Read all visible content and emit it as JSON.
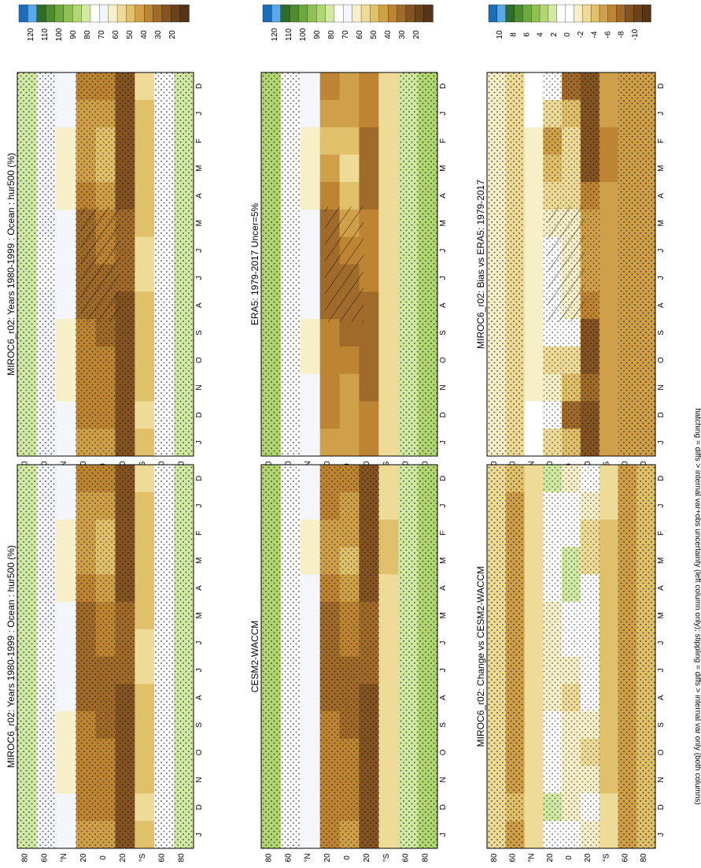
{
  "figure": {
    "footnote": "hatching = diffs > internal var+obs uncertainty (left column only); stippling = diffs > internal var only (both columns)"
  },
  "panels": [
    {
      "title": "MIROC6_r02: Years 1980-1999 : Ocean : hur500 (%)",
      "kind": "abs",
      "hatch": true,
      "stipple": "both"
    },
    {
      "title": "MIROC6_r02: Years 1980-1999 : Ocean : hur500 (%)",
      "kind": "abs",
      "hatch": false,
      "stipple": "both"
    },
    {
      "title": "ERA5: 1979-2017 Uncer=5%",
      "kind": "abs",
      "hatch": true,
      "stipple": "edge"
    },
    {
      "title": "CESM2-WACCM",
      "kind": "abs",
      "hatch": false,
      "stipple": "both"
    },
    {
      "title": "MIROC6_r02: Bias vs ERA5: 1979-2017",
      "kind": "diff",
      "hatch": true,
      "stipple": "both"
    },
    {
      "title": "MIROC6_r02: Change vs CESM2-WACCM",
      "kind": "diff",
      "hatch": false,
      "stipple": "both"
    }
  ],
  "axes": {
    "month_labels": [
      "D",
      "J",
      "F",
      "M",
      "A",
      "M",
      "J",
      "J",
      "A",
      "S",
      "O",
      "N",
      "D",
      "J"
    ],
    "lat_labels": [
      "80",
      "60",
      "°N",
      "20",
      "0",
      "20",
      "°S",
      "60",
      "80"
    ]
  },
  "colorbars": {
    "abs": {
      "labels": [
        "120",
        "110",
        "100",
        "90",
        "80",
        "70",
        "60",
        "50",
        "40",
        "30",
        "20"
      ]
    },
    "diff": {
      "labels": [
        "10",
        "8",
        "6",
        "4",
        "2",
        "0",
        "-2",
        "-4",
        "-6",
        "-8",
        "-10"
      ]
    }
  },
  "chart_data": [
    {
      "type": "heatmap",
      "title": "MIROC6_r02: Years 1980-1999 : Ocean : hur500 (%)",
      "xlabel": "",
      "ylabel": "",
      "x": [
        "D",
        "J",
        "F",
        "M",
        "A",
        "M",
        "J",
        "J",
        "A",
        "S",
        "O",
        "N",
        "D",
        "J"
      ],
      "y": [
        80,
        60,
        40,
        20,
        0,
        -20,
        -40,
        -60,
        -80
      ],
      "units": "%",
      "colorbar_range": [
        15,
        125
      ],
      "values": [
        [
          85,
          85,
          85,
          85,
          85,
          85,
          85,
          85,
          85,
          85,
          85,
          85,
          85,
          85
        ],
        [
          73,
          72,
          71,
          71,
          72,
          73,
          74,
          74,
          73,
          72,
          71,
          71,
          73,
          73
        ],
        [
          69,
          67,
          63,
          63,
          64,
          67,
          69,
          69,
          67,
          64,
          64,
          66,
          69,
          67
        ],
        [
          40,
          43,
          47,
          44,
          40,
          35,
          33,
          33,
          33,
          37,
          40,
          39,
          40,
          43
        ],
        [
          37,
          43,
          49,
          52,
          48,
          42,
          37,
          35,
          33,
          35,
          38,
          40,
          37,
          43
        ],
        [
          30,
          28,
          26,
          26,
          30,
          33,
          33,
          32,
          29,
          26,
          25,
          28,
          30,
          28
        ],
        [
          55,
          53,
          49,
          49,
          51,
          53,
          55,
          55,
          53,
          51,
          51,
          53,
          55,
          53
        ],
        [
          75,
          75,
          75,
          75,
          75,
          75,
          75,
          75,
          75,
          75,
          75,
          75,
          75,
          75
        ],
        [
          83,
          83,
          83,
          83,
          83,
          83,
          83,
          83,
          83,
          83,
          83,
          83,
          83,
          83
        ]
      ]
    },
    {
      "type": "heatmap",
      "title": "ERA5: 1979-2017 Uncer=5%",
      "xlabel": "",
      "ylabel": "",
      "x": [
        "D",
        "J",
        "F",
        "M",
        "A",
        "M",
        "J",
        "J",
        "A",
        "S",
        "O",
        "N",
        "D",
        "J"
      ],
      "y": [
        80,
        60,
        40,
        20,
        0,
        -20,
        -40,
        -60,
        -80
      ],
      "units": "%",
      "colorbar_range": [
        15,
        125
      ],
      "values": [
        [
          86,
          86,
          86,
          86,
          86,
          86,
          86,
          86,
          86,
          86,
          86,
          86,
          86,
          86
        ],
        [
          75,
          75,
          74,
          74,
          75,
          76,
          77,
          77,
          76,
          75,
          74,
          74,
          75,
          75
        ],
        [
          69,
          67,
          64,
          64,
          65,
          68,
          70,
          70,
          68,
          65,
          65,
          67,
          69,
          67
        ],
        [
          39,
          46,
          52,
          48,
          42,
          36,
          33,
          32,
          33,
          37,
          42,
          40,
          39,
          46
        ],
        [
          44,
          47,
          52,
          55,
          50,
          43,
          38,
          36,
          34,
          35,
          40,
          44,
          44,
          47
        ],
        [
          38,
          37,
          35,
          35,
          36,
          38,
          38,
          37,
          35,
          34,
          34,
          36,
          38,
          37
        ],
        [
          60,
          58,
          55,
          55,
          56,
          58,
          60,
          60,
          58,
          56,
          56,
          58,
          60,
          58
        ],
        [
          80,
          80,
          80,
          80,
          80,
          80,
          80,
          80,
          80,
          80,
          80,
          80,
          80,
          80
        ],
        [
          88,
          88,
          88,
          88,
          88,
          88,
          88,
          88,
          88,
          88,
          88,
          88,
          88,
          88
        ]
      ]
    },
    {
      "type": "heatmap",
      "title": "CESM2-WACCM",
      "xlabel": "",
      "ylabel": "",
      "x": [
        "D",
        "J",
        "F",
        "M",
        "A",
        "M",
        "J",
        "J",
        "A",
        "S",
        "O",
        "N",
        "D",
        "J"
      ],
      "y": [
        80,
        60,
        40,
        20,
        0,
        -20,
        -40,
        -60,
        -80
      ],
      "units": "%",
      "colorbar_range": [
        15,
        125
      ],
      "values": [
        [
          88,
          88,
          88,
          88,
          88,
          88,
          88,
          88,
          88,
          88,
          88,
          88,
          88,
          88
        ],
        [
          77,
          77,
          76,
          76,
          77,
          78,
          79,
          79,
          78,
          77,
          76,
          76,
          77,
          77
        ],
        [
          71,
          69,
          66,
          66,
          67,
          70,
          72,
          72,
          70,
          67,
          67,
          69,
          71,
          69
        ],
        [
          38,
          42,
          46,
          43,
          40,
          36,
          34,
          34,
          34,
          37,
          40,
          39,
          38,
          42
        ],
        [
          38,
          43,
          48,
          50,
          46,
          41,
          37,
          36,
          35,
          36,
          39,
          41,
          38,
          43
        ],
        [
          30,
          29,
          28,
          28,
          30,
          32,
          32,
          31,
          29,
          27,
          27,
          29,
          30,
          29
        ],
        [
          58,
          56,
          53,
          53,
          55,
          57,
          59,
          59,
          57,
          55,
          55,
          57,
          58,
          56
        ],
        [
          80,
          80,
          80,
          80,
          80,
          80,
          80,
          80,
          80,
          80,
          80,
          80,
          80,
          80
        ],
        [
          87,
          87,
          87,
          87,
          87,
          87,
          87,
          87,
          87,
          87,
          87,
          87,
          87,
          87
        ]
      ]
    },
    {
      "type": "heatmap",
      "title": "MIROC6_r02: Bias vs ERA5: 1979-2017",
      "xlabel": "",
      "ylabel": "",
      "x": [
        "D",
        "J",
        "F",
        "M",
        "A",
        "M",
        "J",
        "J",
        "A",
        "S",
        "O",
        "N",
        "D",
        "J"
      ],
      "y": [
        80,
        60,
        40,
        20,
        0,
        -20,
        -40,
        -60,
        -80
      ],
      "units": "%",
      "colorbar_range": [
        -11,
        11
      ],
      "values": [
        [
          -1,
          -1,
          -1,
          -1,
          -1,
          -1,
          -1,
          -1,
          -1,
          -1,
          -1,
          -1,
          -1,
          -1
        ],
        [
          -2,
          -3,
          -3,
          -3,
          -3,
          -3,
          -3,
          -3,
          -3,
          -3,
          -3,
          -3,
          -2,
          -3
        ],
        [
          0,
          0,
          -1,
          -1,
          -1,
          -1,
          -1,
          -1,
          -1,
          -1,
          -1,
          -1,
          0,
          0
        ],
        [
          1,
          -3,
          -5,
          -4,
          -2,
          -1,
          0,
          1,
          0,
          0,
          -2,
          -1,
          1,
          -3
        ],
        [
          -7,
          -4,
          -3,
          -3,
          -2,
          -1,
          -1,
          -1,
          -1,
          0,
          -2,
          -4,
          -7,
          -4
        ],
        [
          -8,
          -9,
          -9,
          -9,
          -6,
          -5,
          -5,
          -5,
          -6,
          -8,
          -9,
          -7,
          -8,
          -9
        ],
        [
          -5,
          -5,
          -6,
          -6,
          -5,
          -5,
          -5,
          -5,
          -5,
          -5,
          -5,
          -5,
          -5,
          -5
        ],
        [
          -5,
          -5,
          -5,
          -5,
          -5,
          -5,
          -5,
          -5,
          -5,
          -5,
          -5,
          -5,
          -5,
          -5
        ],
        [
          -5,
          -5,
          -5,
          -5,
          -5,
          -5,
          -5,
          -5,
          -5,
          -5,
          -5,
          -5,
          -5,
          -5
        ]
      ]
    },
    {
      "type": "heatmap",
      "title": "MIROC6_r02: Change vs CESM2-WACCM",
      "xlabel": "",
      "ylabel": "",
      "x": [
        "D",
        "J",
        "F",
        "M",
        "A",
        "M",
        "J",
        "J",
        "A",
        "S",
        "O",
        "N",
        "D",
        "J"
      ],
      "y": [
        80,
        60,
        40,
        20,
        0,
        -20,
        -40,
        -60,
        -80
      ],
      "units": "%",
      "colorbar_range": [
        -11,
        11
      ],
      "values": [
        [
          -3,
          -3,
          -3,
          -3,
          -3,
          -3,
          -3,
          -3,
          -3,
          -3,
          -3,
          -3,
          -3,
          -3
        ],
        [
          -4,
          -5,
          -5,
          -5,
          -5,
          -5,
          -5,
          -5,
          -5,
          -5,
          -5,
          -5,
          -4,
          -5
        ],
        [
          -2,
          -2,
          -3,
          -3,
          -3,
          -3,
          -3,
          -3,
          -3,
          -3,
          -3,
          -3,
          -2,
          -2
        ],
        [
          2,
          1,
          1,
          1,
          0,
          -1,
          -1,
          -1,
          -1,
          0,
          0,
          0,
          2,
          1
        ],
        [
          -1,
          0,
          1,
          2,
          2,
          1,
          0,
          -1,
          -2,
          -1,
          -1,
          -1,
          -1,
          0
        ],
        [
          0,
          -1,
          -2,
          -2,
          0,
          1,
          1,
          1,
          0,
          -1,
          -2,
          -1,
          0,
          -1
        ],
        [
          -3,
          -3,
          -4,
          -4,
          -4,
          -4,
          -4,
          -4,
          -4,
          -4,
          -4,
          -4,
          -3,
          -3
        ],
        [
          -5,
          -5,
          -5,
          -5,
          -5,
          -5,
          -5,
          -5,
          -5,
          -5,
          -5,
          -5,
          -5,
          -5
        ],
        [
          -4,
          -4,
          -4,
          -4,
          -4,
          -4,
          -4,
          -4,
          -4,
          -4,
          -4,
          -4,
          -4,
          -4
        ]
      ]
    }
  ],
  "palette": {
    "abs_bands": [
      "#1e6db4",
      "#5aa9e6",
      "#2f6b2a",
      "#4e8a2f",
      "#6fa83c",
      "#8fc150",
      "#b2d772",
      "#d2e9a4",
      "#ffffff",
      "#f4f6fb",
      "#f6efc8",
      "#eedb98",
      "#e0c06a",
      "#cfa049",
      "#bd8433",
      "#a06a2a",
      "#845322",
      "#6a421c",
      "#553418"
    ],
    "diff_bands": [
      "#1e6db4",
      "#5aa9e6",
      "#2f6b2a",
      "#4e8a2f",
      "#6fa83c",
      "#8fc150",
      "#b2d772",
      "#d2e9a4",
      "#ffffff",
      "#ffffff",
      "#f6efc8",
      "#eedb98",
      "#e0c06a",
      "#cfa049",
      "#bd8433",
      "#a06a2a",
      "#845322",
      "#6a421c",
      "#553418"
    ]
  }
}
